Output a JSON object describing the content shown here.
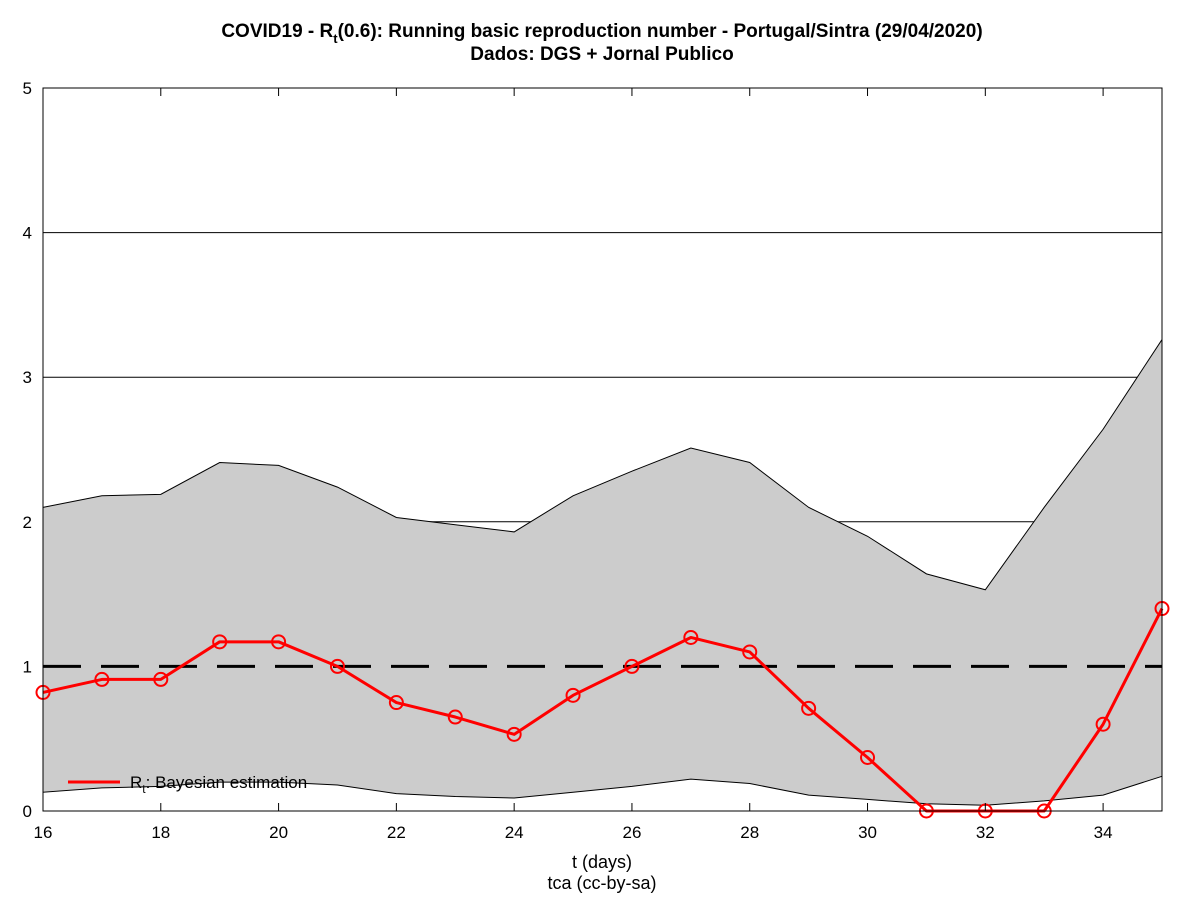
{
  "chart_data": {
    "type": "line",
    "title_prefix": "COVID19 - R",
    "title_sub": "t",
    "title_rest": "(0.6): Running basic reproduction number - Portugal/Sintra (29/04/2020)",
    "subtitle": "Dados: DGS + Jornal Publico",
    "xlabel": "t (days)",
    "credit": "tca (cc-by-sa)",
    "xlim": [
      16,
      35
    ],
    "ylim": [
      0,
      5
    ],
    "xticks": [
      16,
      18,
      20,
      22,
      24,
      26,
      28,
      30,
      32,
      34
    ],
    "yticks": [
      0,
      1,
      2,
      3,
      4,
      5
    ],
    "grid": "horizontal",
    "legend_position": "bottom-left",
    "reference_line": 1,
    "x": [
      16,
      17,
      18,
      19,
      20,
      21,
      22,
      23,
      24,
      25,
      26,
      27,
      28,
      29,
      30,
      31,
      32,
      33,
      34,
      35
    ],
    "series": [
      {
        "name_prefix": "R",
        "name_sub": "t",
        "name_rest": ": Bayesian estimation",
        "color": "#ff0000",
        "values": [
          0.82,
          0.91,
          0.91,
          1.17,
          1.17,
          1.0,
          0.75,
          0.65,
          0.53,
          0.8,
          1.0,
          1.2,
          1.1,
          0.71,
          0.37,
          0.0,
          0.0,
          0.0,
          0.6,
          1.4
        ]
      }
    ],
    "band": {
      "color": "#cccccc",
      "upper": [
        2.1,
        2.18,
        2.19,
        2.41,
        2.39,
        2.24,
        2.03,
        1.98,
        1.93,
        2.18,
        2.35,
        2.51,
        2.41,
        2.1,
        1.9,
        1.64,
        1.53,
        2.1,
        2.64,
        3.26
      ],
      "lower": [
        0.13,
        0.16,
        0.17,
        0.2,
        0.2,
        0.18,
        0.12,
        0.1,
        0.09,
        0.13,
        0.17,
        0.22,
        0.19,
        0.11,
        0.08,
        0.05,
        0.04,
        0.07,
        0.11,
        0.24
      ]
    }
  }
}
